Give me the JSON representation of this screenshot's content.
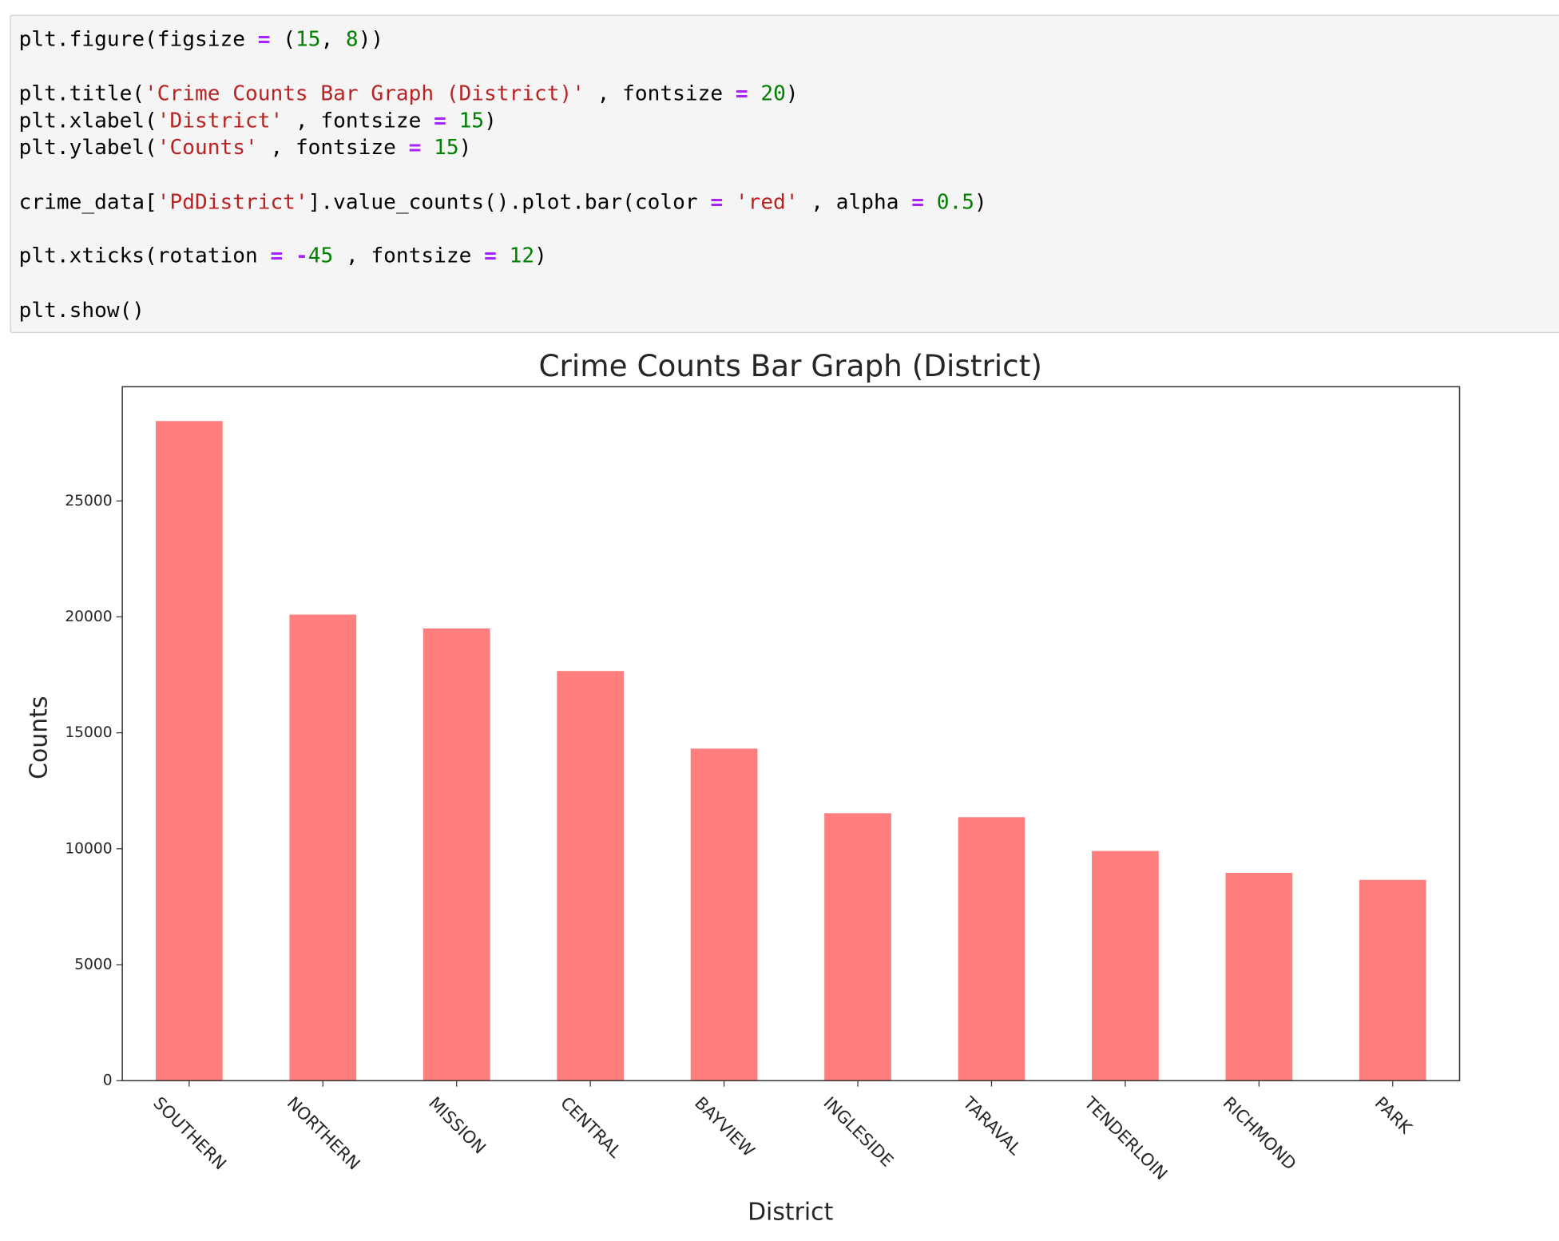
{
  "code": {
    "lines": [
      "plt.figure(figsize = (15, 8))",
      "plt.title('Crime Counts Bar Graph (District)' , fontsize = 20)",
      "plt.xlabel('District' , fontsize = 15)",
      "plt.ylabel('Counts' , fontsize = 15)",
      "crime_data['PdDistrict'].value_counts().plot.bar(color = 'red' , alpha = 0.5)",
      "plt.xticks(rotation = -45 , fontsize = 12)",
      "plt.show()"
    ]
  },
  "chart_data": {
    "type": "bar",
    "title": "Crime Counts Bar Graph (District)",
    "x_label": "District",
    "y_label": "Counts",
    "categories": [
      "SOUTHERN",
      "NORTHERN",
      "MISSION",
      "CENTRAL",
      "BAYVIEW",
      "INGLESIDE",
      "TARAVAL",
      "TENDERLOIN",
      "RICHMOND",
      "PARK"
    ],
    "values": [
      28445,
      20100,
      19500,
      17666,
      14320,
      11533,
      11362,
      9904,
      8961,
      8661
    ],
    "color": "red",
    "alpha": 0.5,
    "ylim": [
      0,
      29925
    ],
    "yticks": [
      0,
      5000,
      10000,
      15000,
      20000,
      25000
    ],
    "grid": false
  }
}
